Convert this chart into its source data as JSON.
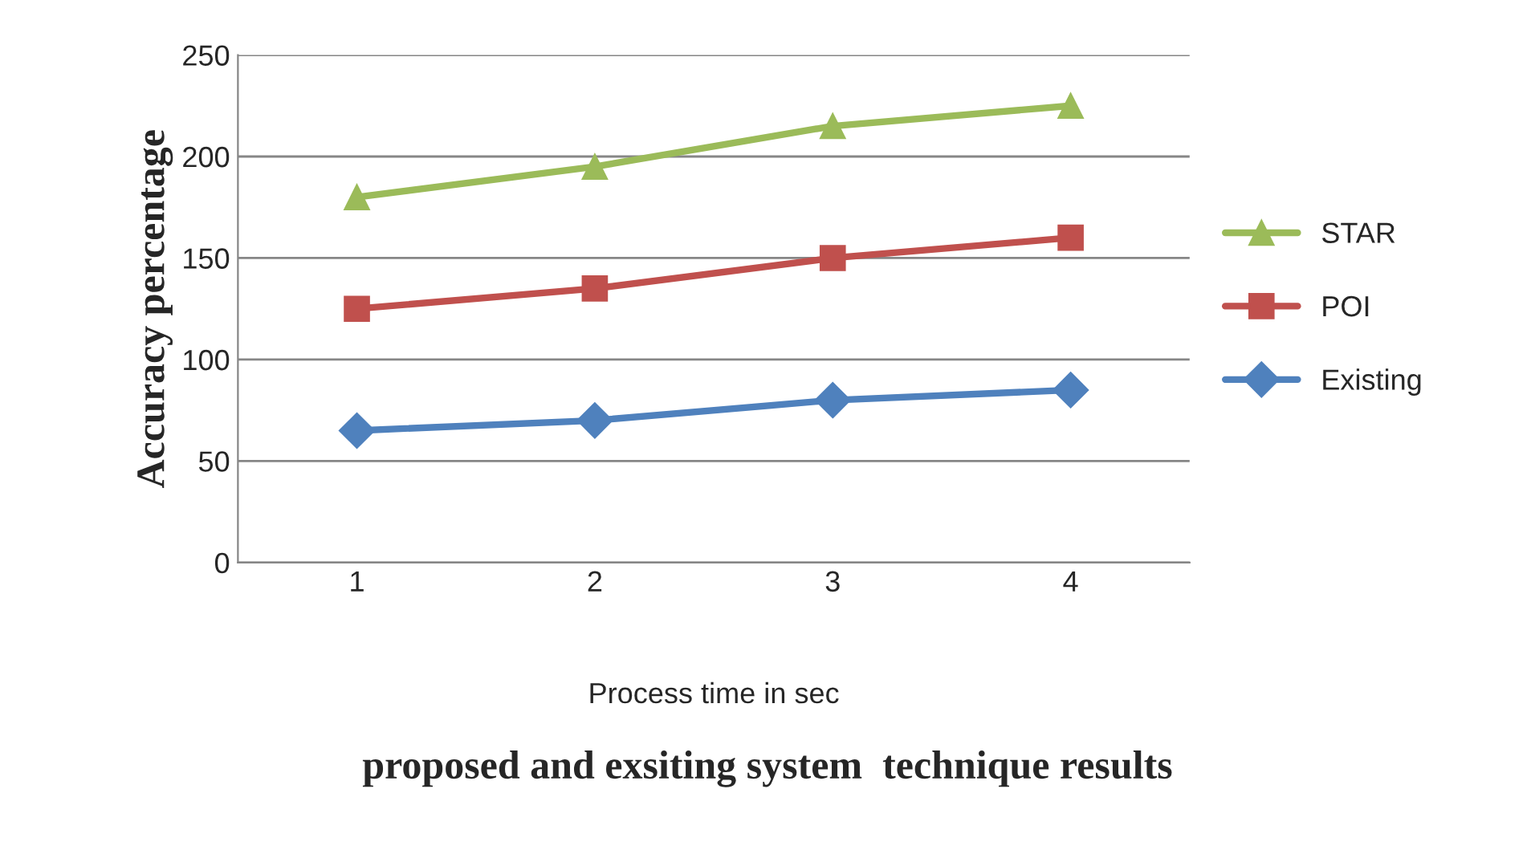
{
  "chart_data": {
    "type": "line",
    "title": "proposed and exsiting system  technique results",
    "xlabel": "Process time in sec",
    "ylabel": "Accuracy percentage",
    "categories": [
      "1",
      "2",
      "3",
      "4"
    ],
    "series": [
      {
        "name": "STAR",
        "color": "#9bbb59",
        "marker": "triangle",
        "values": [
          180,
          195,
          215,
          225
        ]
      },
      {
        "name": "POI",
        "color": "#c0504d",
        "marker": "square",
        "values": [
          125,
          135,
          150,
          160
        ]
      },
      {
        "name": "Existing",
        "color": "#4f81bd",
        "marker": "diamond",
        "values": [
          65,
          70,
          80,
          85
        ]
      }
    ],
    "ylim": [
      0,
      250
    ],
    "yticks": [
      0,
      50,
      100,
      150,
      200,
      250
    ],
    "grid": "y",
    "legend": "right",
    "line_style": "solid"
  }
}
